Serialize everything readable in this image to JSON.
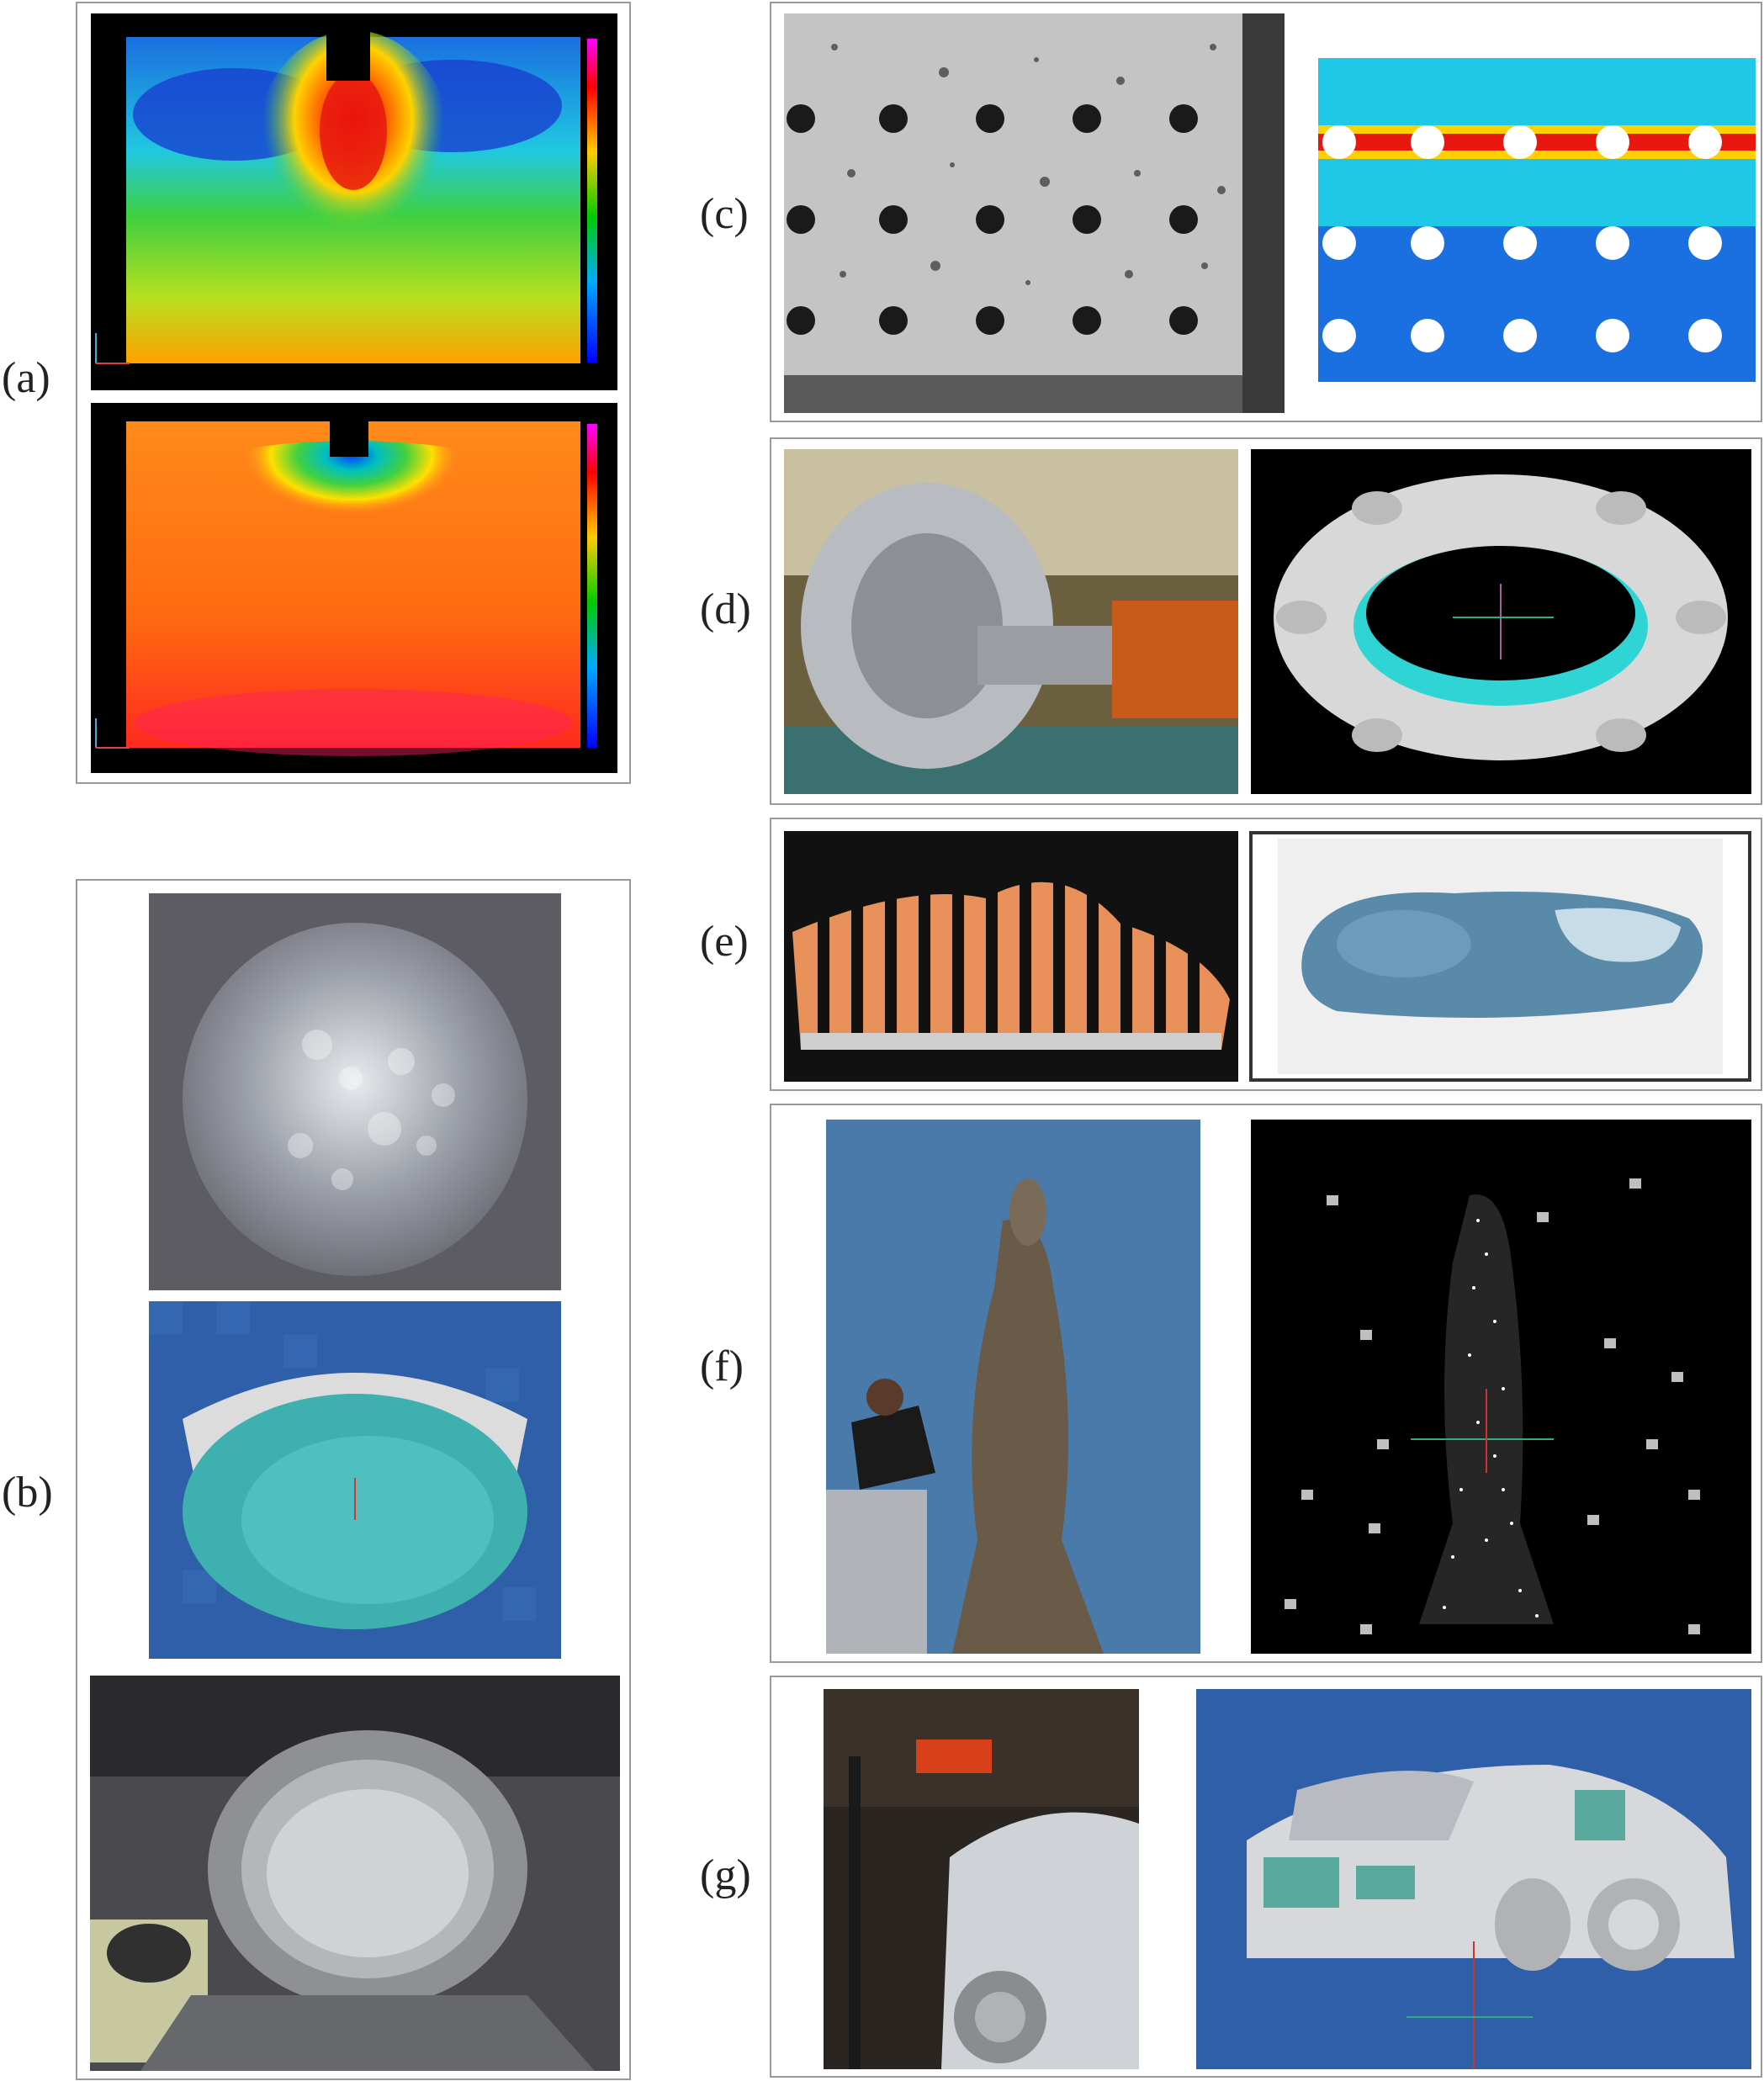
{
  "labels": {
    "a": "(a)",
    "b": "(b)",
    "c": "(c)",
    "d": "(d)",
    "e": "(e)",
    "f": "(f)",
    "g": "(g)"
  },
  "colors": {
    "frame": "#9a9a9a",
    "black": "#000000",
    "hot": "#e8170f",
    "cyan": "#1fd0e8",
    "blue_bg": "#2f5fa8",
    "teal": "#2fd4d4"
  },
  "icons": [
    "coordinate-axes-icon"
  ]
}
